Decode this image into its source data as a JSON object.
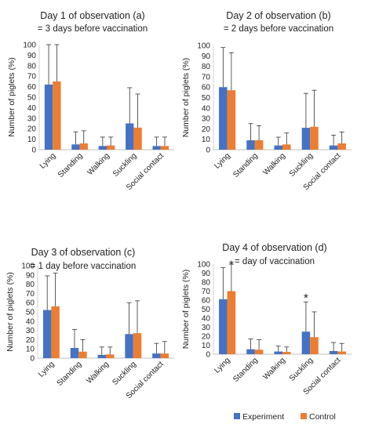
{
  "chart_data": [
    {
      "type": "bar",
      "title": "Day 1 of observation (a)",
      "subtitle": "= 3 days before vaccination",
      "ylabel": "Number of piglets (%)",
      "ylim": [
        0,
        100
      ],
      "yticks": [
        0,
        10,
        20,
        30,
        40,
        50,
        60,
        70,
        80,
        90,
        100
      ],
      "categories": [
        "Lying",
        "Standing",
        "Walking",
        "Suckling",
        "Social contact"
      ],
      "series": [
        {
          "name": "Experiment",
          "color": "#4472C4",
          "values": [
            62,
            5,
            3.5,
            25,
            3.5
          ],
          "error_upper": [
            100,
            17,
            12,
            59,
            12
          ]
        },
        {
          "name": "Control",
          "color": "#ED7D31",
          "values": [
            65,
            6,
            4,
            21,
            3.5
          ],
          "error_upper": [
            100,
            18,
            12,
            53,
            12
          ]
        }
      ],
      "annotations": [],
      "legend": "none",
      "grid": false
    },
    {
      "type": "bar",
      "title": "Day 2 of observation (b)",
      "subtitle": "= 2 days before vaccination",
      "ylabel": "Number of piglets (%)",
      "ylim": [
        0,
        100
      ],
      "yticks": [
        0,
        10,
        20,
        30,
        40,
        50,
        60,
        70,
        80,
        90,
        100
      ],
      "categories": [
        "Lying",
        "Standing",
        "Walking",
        "Suckling",
        "Social contact"
      ],
      "series": [
        {
          "name": "Experiment",
          "color": "#4472C4",
          "values": [
            60,
            9,
            4,
            21,
            4
          ],
          "error_upper": [
            98,
            25,
            12,
            54,
            14
          ]
        },
        {
          "name": "Control",
          "color": "#ED7D31",
          "values": [
            57,
            9,
            5,
            22,
            6
          ],
          "error_upper": [
            93,
            23,
            16,
            57,
            17
          ]
        }
      ],
      "annotations": [],
      "legend": "none",
      "grid": false
    },
    {
      "type": "bar",
      "title": "Day 3 of observation (c)",
      "subtitle": "= 1 day before vaccination",
      "ylabel": "Number of piglets (%)",
      "ylim": [
        0,
        100
      ],
      "yticks": [
        0,
        10,
        20,
        30,
        40,
        50,
        60,
        70,
        80,
        90,
        100
      ],
      "categories": [
        "Lying",
        "Standing",
        "Walking",
        "Suckling",
        "Social contact"
      ],
      "series": [
        {
          "name": "Experiment",
          "color": "#4472C4",
          "values": [
            52,
            11,
            3.5,
            26,
            5
          ],
          "error_upper": [
            89,
            31,
            12,
            60,
            16
          ]
        },
        {
          "name": "Control",
          "color": "#ED7D31",
          "values": [
            56,
            7,
            4,
            27,
            5
          ],
          "error_upper": [
            92,
            20,
            12,
            62,
            18
          ]
        }
      ],
      "annotations": [],
      "legend": "none",
      "grid": false
    },
    {
      "type": "bar",
      "title": "Day 4 of observation (d)",
      "subtitle": "= day of vaccination",
      "ylabel": "Number of piglets (%)",
      "ylim": [
        0,
        100
      ],
      "yticks": [
        0,
        10,
        20,
        30,
        40,
        50,
        60,
        70,
        80,
        90,
        100
      ],
      "categories": [
        "Lying",
        "Standing",
        "Walking",
        "Suckling",
        "Social contact"
      ],
      "series": [
        {
          "name": "Experiment",
          "color": "#4472C4",
          "values": [
            61,
            5.5,
            3,
            25,
            3.5
          ],
          "error_upper": [
            96,
            17,
            9,
            58,
            13
          ]
        },
        {
          "name": "Control",
          "color": "#ED7D31",
          "values": [
            70,
            5,
            2.5,
            19,
            3
          ],
          "error_upper": [
            100,
            16,
            8,
            47,
            12
          ]
        }
      ],
      "annotations": [
        {
          "text": "*",
          "category": 0,
          "series": 1,
          "value": 103
        },
        {
          "text": "*",
          "category": 3,
          "series": 0,
          "value": 66
        }
      ],
      "legend": "bottom",
      "grid": false
    }
  ],
  "legend": {
    "items": [
      {
        "label": "Experiment",
        "color": "#4472C4"
      },
      {
        "label": "Control",
        "color": "#ED7D31"
      }
    ]
  }
}
